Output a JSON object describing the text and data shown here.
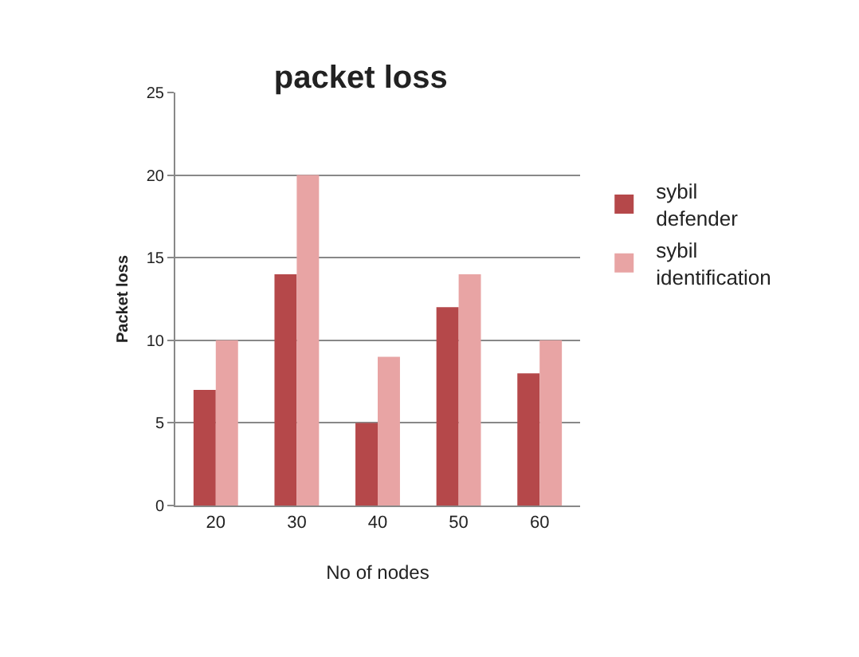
{
  "chart_data": {
    "type": "bar",
    "title": "packet loss",
    "xlabel": "No of nodes",
    "ylabel": "Packet loss",
    "categories": [
      "20",
      "30",
      "40",
      "50",
      "60"
    ],
    "series": [
      {
        "name": "sybil defender",
        "color": "#b5484a",
        "values": [
          7,
          14,
          5,
          12,
          8
        ]
      },
      {
        "name": "sybil identification",
        "color": "#e8a4a4",
        "values": [
          10,
          20,
          9,
          14,
          10
        ]
      }
    ],
    "ylim": [
      0,
      25
    ],
    "yticks": [
      0,
      5,
      10,
      15,
      20,
      25
    ],
    "grid": "y",
    "legend": "right"
  }
}
